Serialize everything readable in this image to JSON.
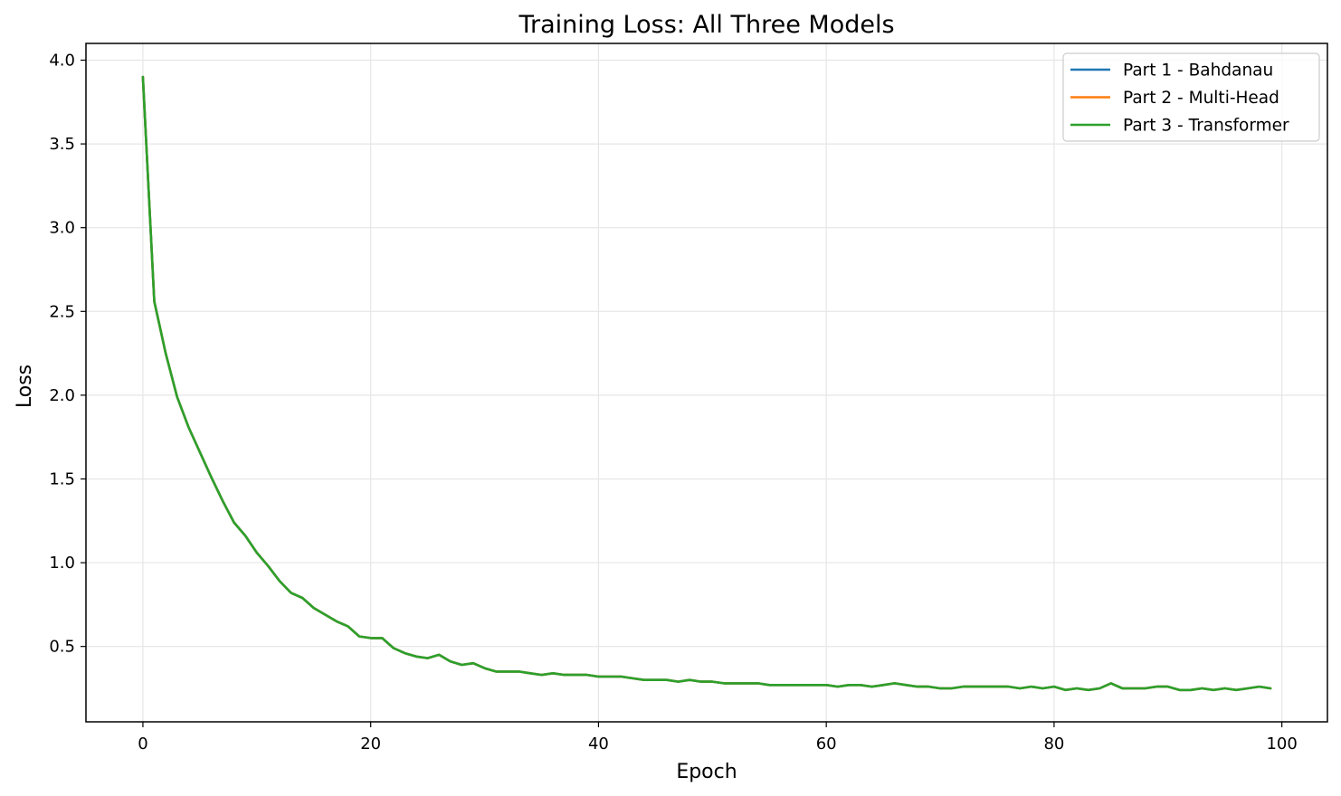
{
  "chart_data": {
    "type": "line",
    "title": "Training Loss: All Three Models",
    "xlabel": "Epoch",
    "ylabel": "Loss",
    "xlim": [
      -5,
      104
    ],
    "ylim": [
      0.05,
      4.1
    ],
    "xticks": [
      0,
      20,
      40,
      60,
      80,
      100
    ],
    "yticks": [
      0.5,
      1.0,
      1.5,
      2.0,
      2.5,
      3.0,
      3.5,
      4.0
    ],
    "grid": true,
    "legend_position": "top-right",
    "x": [
      0,
      1,
      2,
      3,
      4,
      5,
      6,
      7,
      8,
      9,
      10,
      11,
      12,
      13,
      14,
      15,
      16,
      17,
      18,
      19,
      20,
      21,
      22,
      23,
      24,
      25,
      26,
      27,
      28,
      29,
      30,
      31,
      32,
      33,
      34,
      35,
      36,
      37,
      38,
      39,
      40,
      41,
      42,
      43,
      44,
      45,
      46,
      47,
      48,
      49,
      50,
      51,
      52,
      53,
      54,
      55,
      56,
      57,
      58,
      59,
      60,
      61,
      62,
      63,
      64,
      65,
      66,
      67,
      68,
      69,
      70,
      71,
      72,
      73,
      74,
      75,
      76,
      77,
      78,
      79,
      80,
      81,
      82,
      83,
      84,
      85,
      86,
      87,
      88,
      89,
      90,
      91,
      92,
      93,
      94,
      95,
      96,
      97,
      98,
      99
    ],
    "series": [
      {
        "name": "Part 1 - Bahdanau",
        "color": "#1f77b4",
        "values": [
          3.9,
          2.56,
          2.25,
          1.99,
          1.81,
          1.66,
          1.51,
          1.37,
          1.24,
          1.16,
          1.06,
          0.98,
          0.89,
          0.82,
          0.79,
          0.73,
          0.69,
          0.65,
          0.62,
          0.56,
          0.55,
          0.55,
          0.49,
          0.46,
          0.44,
          0.43,
          0.45,
          0.41,
          0.39,
          0.4,
          0.37,
          0.35,
          0.35,
          0.35,
          0.34,
          0.33,
          0.34,
          0.33,
          0.33,
          0.33,
          0.32,
          0.32,
          0.32,
          0.31,
          0.3,
          0.3,
          0.3,
          0.29,
          0.3,
          0.29,
          0.29,
          0.28,
          0.28,
          0.28,
          0.28,
          0.27,
          0.27,
          0.27,
          0.27,
          0.27,
          0.27,
          0.26,
          0.27,
          0.27,
          0.26,
          0.27,
          0.28,
          0.27,
          0.26,
          0.26,
          0.25,
          0.25,
          0.26,
          0.26,
          0.26,
          0.26,
          0.26,
          0.25,
          0.26,
          0.25,
          0.26,
          0.24,
          0.25,
          0.24,
          0.25,
          0.28,
          0.25,
          0.25,
          0.25,
          0.26,
          0.26,
          0.24,
          0.24,
          0.25,
          0.24,
          0.25,
          0.24,
          0.25,
          0.26,
          0.25
        ]
      },
      {
        "name": "Part 2 - Multi-Head",
        "color": "#ff7f0e",
        "values": [
          3.9,
          2.56,
          2.25,
          1.99,
          1.81,
          1.66,
          1.51,
          1.37,
          1.24,
          1.16,
          1.06,
          0.98,
          0.89,
          0.82,
          0.79,
          0.73,
          0.69,
          0.65,
          0.62,
          0.56,
          0.55,
          0.55,
          0.49,
          0.46,
          0.44,
          0.43,
          0.45,
          0.41,
          0.39,
          0.4,
          0.37,
          0.35,
          0.35,
          0.35,
          0.34,
          0.33,
          0.34,
          0.33,
          0.33,
          0.33,
          0.32,
          0.32,
          0.32,
          0.31,
          0.3,
          0.3,
          0.3,
          0.29,
          0.3,
          0.29,
          0.29,
          0.28,
          0.28,
          0.28,
          0.28,
          0.27,
          0.27,
          0.27,
          0.27,
          0.27,
          0.27,
          0.26,
          0.27,
          0.27,
          0.26,
          0.27,
          0.28,
          0.27,
          0.26,
          0.26,
          0.25,
          0.25,
          0.26,
          0.26,
          0.26,
          0.26,
          0.26,
          0.25,
          0.26,
          0.25,
          0.26,
          0.24,
          0.25,
          0.24,
          0.25,
          0.28,
          0.25,
          0.25,
          0.25,
          0.26,
          0.26,
          0.24,
          0.24,
          0.25,
          0.24,
          0.25,
          0.24,
          0.25,
          0.26,
          0.25
        ]
      },
      {
        "name": "Part 3 - Transformer",
        "color": "#2ca02c",
        "values": [
          3.9,
          2.56,
          2.25,
          1.99,
          1.81,
          1.66,
          1.51,
          1.37,
          1.24,
          1.16,
          1.06,
          0.98,
          0.89,
          0.82,
          0.79,
          0.73,
          0.69,
          0.65,
          0.62,
          0.56,
          0.55,
          0.55,
          0.49,
          0.46,
          0.44,
          0.43,
          0.45,
          0.41,
          0.39,
          0.4,
          0.37,
          0.35,
          0.35,
          0.35,
          0.34,
          0.33,
          0.34,
          0.33,
          0.33,
          0.33,
          0.32,
          0.32,
          0.32,
          0.31,
          0.3,
          0.3,
          0.3,
          0.29,
          0.3,
          0.29,
          0.29,
          0.28,
          0.28,
          0.28,
          0.28,
          0.27,
          0.27,
          0.27,
          0.27,
          0.27,
          0.27,
          0.26,
          0.27,
          0.27,
          0.26,
          0.27,
          0.28,
          0.27,
          0.26,
          0.26,
          0.25,
          0.25,
          0.26,
          0.26,
          0.26,
          0.26,
          0.26,
          0.25,
          0.26,
          0.25,
          0.26,
          0.24,
          0.25,
          0.24,
          0.25,
          0.28,
          0.25,
          0.25,
          0.25,
          0.26,
          0.26,
          0.24,
          0.24,
          0.25,
          0.24,
          0.25,
          0.24,
          0.25,
          0.26,
          0.25
        ]
      }
    ]
  }
}
